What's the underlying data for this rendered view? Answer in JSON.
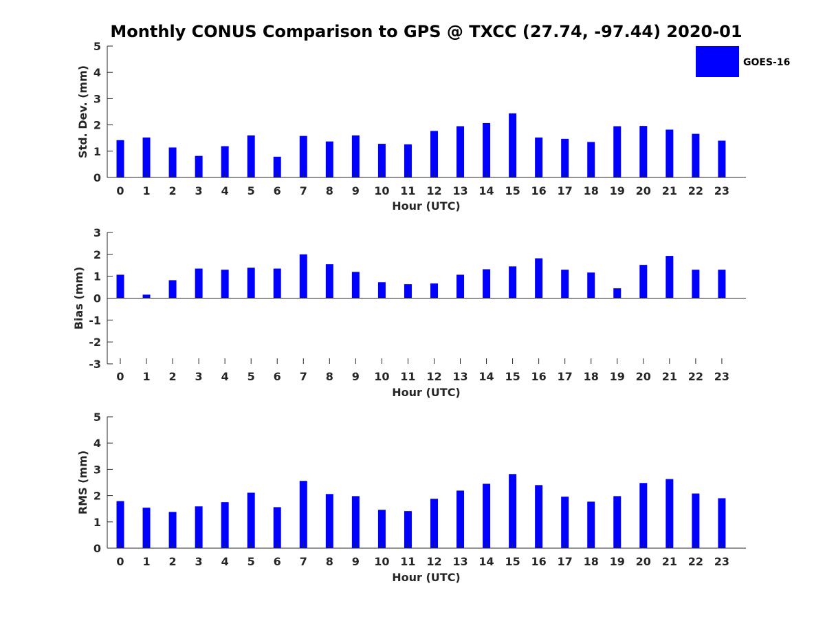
{
  "title": "Monthly CONUS Comparison to GPS @ TXCC (27.74, -97.44) 2020-01",
  "legend": {
    "label": "GOES-16",
    "color": "#0000ff"
  },
  "chart_data": [
    {
      "type": "bar",
      "name": "std-dev",
      "xlabel": "Hour (UTC)",
      "ylabel": "Std. Dev. (mm)",
      "categories": [
        "0",
        "1",
        "2",
        "3",
        "4",
        "5",
        "6",
        "7",
        "8",
        "9",
        "10",
        "11",
        "12",
        "13",
        "14",
        "15",
        "16",
        "17",
        "18",
        "19",
        "20",
        "21",
        "22",
        "23"
      ],
      "values": [
        1.42,
        1.52,
        1.14,
        0.82,
        1.19,
        1.6,
        0.79,
        1.58,
        1.37,
        1.6,
        1.28,
        1.26,
        1.77,
        1.95,
        2.07,
        2.44,
        1.52,
        1.47,
        1.35,
        1.95,
        1.96,
        1.82,
        1.66,
        1.4
      ],
      "ylim": [
        0,
        5
      ],
      "yticks": [
        "0",
        "1",
        "2",
        "3",
        "4",
        "5"
      ]
    },
    {
      "type": "bar",
      "name": "bias",
      "xlabel": "Hour (UTC)",
      "ylabel": "Bias (mm)",
      "categories": [
        "0",
        "1",
        "2",
        "3",
        "4",
        "5",
        "6",
        "7",
        "8",
        "9",
        "10",
        "11",
        "12",
        "13",
        "14",
        "15",
        "16",
        "17",
        "18",
        "19",
        "20",
        "21",
        "22",
        "23"
      ],
      "values": [
        1.07,
        0.16,
        0.82,
        1.35,
        1.3,
        1.39,
        1.35,
        2.0,
        1.55,
        1.2,
        0.73,
        0.64,
        0.67,
        1.07,
        1.32,
        1.45,
        1.82,
        1.3,
        1.17,
        0.45,
        1.52,
        1.93,
        1.3,
        1.3
      ],
      "ylim": [
        -3,
        3
      ],
      "yticks": [
        "-3",
        "-2",
        "-1",
        "0",
        "1",
        "2",
        "3"
      ]
    },
    {
      "type": "bar",
      "name": "rms",
      "xlabel": "Hour (UTC)",
      "ylabel": "RMS (mm)",
      "categories": [
        "0",
        "1",
        "2",
        "3",
        "4",
        "5",
        "6",
        "7",
        "8",
        "9",
        "10",
        "11",
        "12",
        "13",
        "14",
        "15",
        "16",
        "17",
        "18",
        "19",
        "20",
        "21",
        "22",
        "23"
      ],
      "values": [
        1.79,
        1.54,
        1.38,
        1.59,
        1.75,
        2.11,
        1.56,
        2.56,
        2.06,
        1.98,
        1.46,
        1.41,
        1.88,
        2.19,
        2.45,
        2.82,
        2.4,
        1.96,
        1.77,
        1.98,
        2.48,
        2.63,
        2.08,
        1.9
      ],
      "ylim": [
        0,
        5
      ],
      "yticks": [
        "0",
        "1",
        "2",
        "3",
        "4",
        "5"
      ]
    }
  ]
}
